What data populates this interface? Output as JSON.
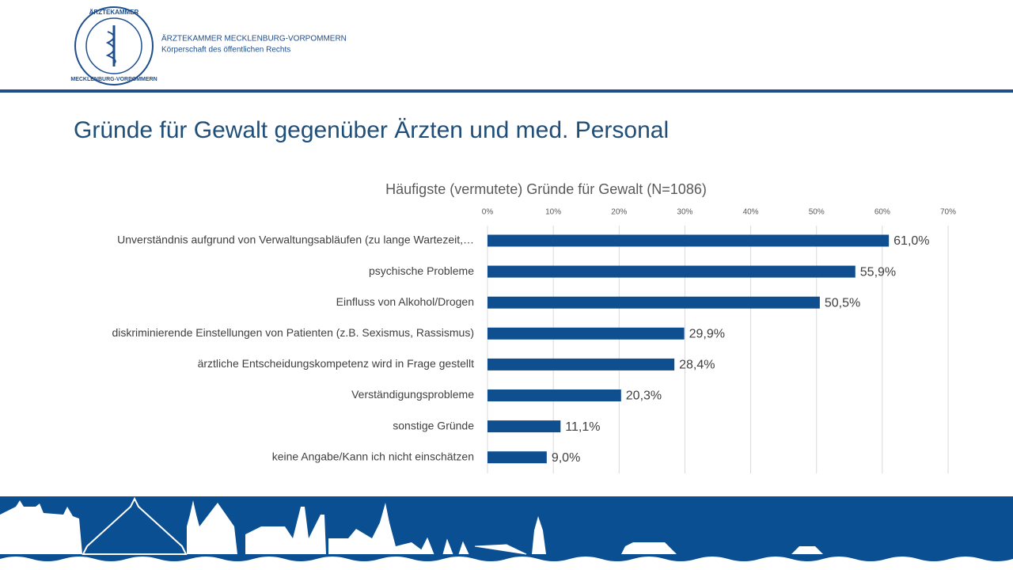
{
  "header": {
    "seal_top": "ÄRZTEKAMMER",
    "seal_bottom": "MECKLENBURG-VORPOMMERN",
    "org_name": "ÄRZTEKAMMER MECKLENBURG-VORPOMMERN",
    "org_sub": "Körperschaft des öffentlichen Rechts"
  },
  "slide_title": "Gründe für Gewalt gegenüber Ärzten und med. Personal",
  "chart_data": {
    "type": "bar",
    "orientation": "horizontal",
    "title": "Häufigste (vermutete) Gründe für Gewalt (N=1086)",
    "categories": [
      "Unverständnis aufgrund von Verwaltungsabläufen (zu lange Wartezeit,…",
      "psychische Probleme",
      "Einfluss von Alkohol/Drogen",
      "diskriminierende Einstellungen von Patienten (z.B. Sexismus, Rassismus)",
      "ärztliche Entscheidungskompetenz wird in Frage gestellt",
      "Verständigungsprobleme",
      "sonstige Gründe",
      "keine Angabe/Kann ich nicht einschätzen"
    ],
    "values": [
      61.0,
      55.9,
      50.5,
      29.9,
      28.4,
      20.3,
      11.1,
      9.0
    ],
    "value_labels": [
      "61,0%",
      "55,9%",
      "50,5%",
      "29,9%",
      "28,4%",
      "20,3%",
      "11,1%",
      "9,0%"
    ],
    "color": "#0f4e8f",
    "xlim": [
      0,
      70
    ],
    "xticks": [
      {
        "value": 0,
        "label": "0%"
      },
      {
        "value": 10,
        "label": "10%"
      },
      {
        "value": 20,
        "label": "20%"
      },
      {
        "value": 30,
        "label": "30%"
      },
      {
        "value": 40,
        "label": "40%"
      },
      {
        "value": 50,
        "label": "50%"
      },
      {
        "value": 60,
        "label": "60%"
      },
      {
        "value": 70,
        "label": "70%"
      }
    ],
    "grid": true
  }
}
